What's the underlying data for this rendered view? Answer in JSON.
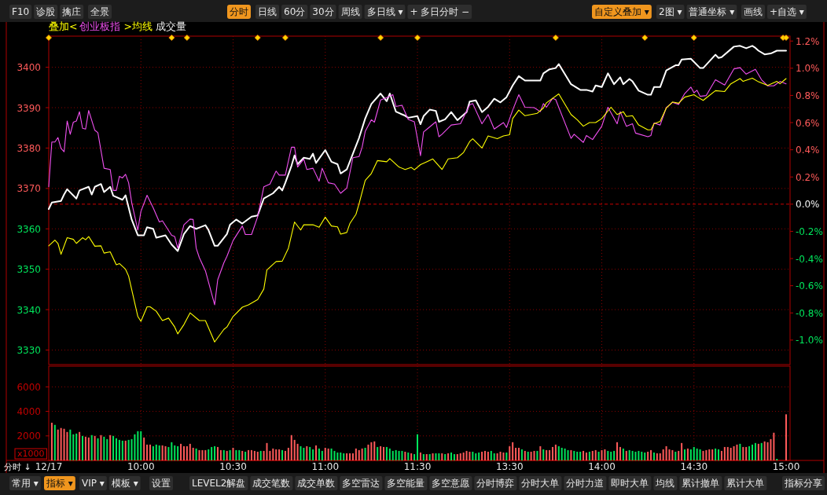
{
  "chart_data": [
    {
      "type": "other",
      "annotations": [
        "F10",
        "诊股",
        "擒庄",
        "全景",
        "分时",
        "日线",
        "60分",
        "30分",
        "周线",
        "多日线 ▾",
        "+ 多日分时 −",
        "自定义叠加 ▾",
        "2图 ▾",
        "普通坐标 ▾",
        "画线",
        "+自选 ▾"
      ]
    },
    {
      "type": "line",
      "categories": [
        null,
        null,
        null,
        null,
        null,
        null,
        null,
        null,
        null,
        null,
        null,
        null,
        null,
        null,
        null,
        null,
        null,
        null,
        null,
        null,
        null,
        null,
        null,
        null,
        null,
        null,
        null,
        null,
        null,
        null,
        null,
        null,
        null,
        null,
        null,
        null,
        null,
        null,
        null,
        null,
        null,
        null,
        null,
        null,
        null,
        null,
        null,
        null,
        null,
        null,
        null,
        null,
        null,
        null,
        null,
        null,
        null,
        null,
        null,
        null,
        null,
        null,
        null,
        null,
        null,
        null,
        null,
        null,
        null,
        null,
        null,
        null,
        null,
        null,
        null,
        null,
        null,
        null,
        null,
        null,
        null,
        null,
        null,
        null,
        null,
        null,
        null,
        null,
        null,
        null,
        null,
        null,
        null,
        null,
        null,
        null,
        null,
        null,
        null,
        null,
        null,
        null,
        null,
        null,
        null,
        null,
        null,
        null,
        null,
        null,
        null,
        null,
        null,
        null,
        null,
        null,
        null,
        null,
        null,
        null,
        null,
        null,
        null,
        null,
        null,
        null,
        null,
        null,
        null,
        null,
        null,
        null,
        null,
        null,
        null,
        null,
        null,
        null,
        null,
        null,
        null,
        null,
        null,
        null,
        null,
        null,
        null,
        null,
        null,
        null,
        null,
        null,
        null,
        null,
        null,
        null,
        null,
        null,
        null,
        null,
        null,
        null,
        null,
        null,
        null,
        null,
        null,
        null,
        null,
        null,
        null,
        null,
        null,
        null,
        null,
        null,
        null,
        null,
        null,
        null,
        null,
        null,
        null,
        null,
        null,
        null,
        null,
        null,
        null,
        null,
        null,
        null,
        null,
        null,
        null,
        null,
        null,
        null,
        null,
        null,
        null,
        null,
        null,
        null,
        null,
        null,
        null,
        null,
        null,
        null,
        null,
        null,
        null,
        null,
        null,
        null,
        null,
        null,
        null,
        null,
        null,
        null,
        null,
        null,
        null,
        null,
        null,
        null,
        null,
        null,
        null,
        null,
        null,
        null,
        null,
        null,
        null,
        null,
        null,
        null,
        null
      ],
      "ylim": [
        3326.4,
        3407.7
      ],
      "yticks": [
        3330,
        3340,
        3350,
        3360,
        3370,
        3380,
        3390,
        3400
      ],
      "y2lim": [
        -1.18,
        1.236
      ],
      "y2ticks": [
        {
          "value": -1.0,
          "label": "-1.0%"
        },
        {
          "value": -0.8,
          "label": "-0.8%"
        },
        {
          "value": -0.6,
          "label": "-0.6%"
        },
        {
          "value": -0.4,
          "label": "-0.4%"
        },
        {
          "value": -0.2,
          "label": "-0.2%"
        },
        {
          "value": 0,
          "label": "0.0%"
        },
        {
          "value": 0.2,
          "label": "0.2%"
        },
        {
          "value": 0.4,
          "label": "0.4%"
        },
        {
          "value": 0.6,
          "label": "0.6%"
        },
        {
          "value": 0.8,
          "label": "0.8%"
        },
        {
          "value": 1.0,
          "label": "1.0%"
        },
        {
          "value": 1.2,
          "label": "1.2%"
        }
      ],
      "grid": true,
      "tick_labels": "y",
      "legend_title": "叠加<",
      "ref_lines": [
        {
          "axis": "y2",
          "value": 0,
          "color": "#cc0000",
          "line_style": "dashed"
        }
      ],
      "series": [
        {
          "color": "#ffffff",
          "values": [
            3364.9,
            3366.5,
            null,
            null,
            3366.9,
            3368.5,
            3369.8,
            null,
            null,
            3367.5,
            3369.5,
            null,
            null,
            3370.4,
            3368.5,
            3370.4,
            null,
            3371.1,
            3369.1,
            null,
            3370.4,
            3368.2,
            null,
            null,
            3367.2,
            3368.3,
            null,
            3362.3,
            null,
            3358.4,
            null,
            3358.4,
            3360.4,
            null,
            3360.0,
            3357.8,
            null,
            null,
            3358.4,
            null,
            3356.1,
            null,
            3354.5,
            null,
            3358.7,
            null,
            3360.7,
            null,
            3360.0,
            null,
            null,
            3360.9,
            3359.7,
            null,
            3355.8,
            3355.8,
            null,
            null,
            3358.7,
            3361.0,
            null,
            3362.3,
            null,
            3361.3,
            null,
            null,
            3363.0,
            null,
            3363.3,
            null,
            3367.5,
            null,
            null,
            3368.8,
            null,
            3370.4,
            3369.5,
            3371.4,
            null,
            3375.6,
            3378.2,
            3376.0,
            null,
            3377.6,
            null,
            3377.3,
            3378.6,
            3376.3,
            null,
            null,
            3379.5,
            null,
            3376.6,
            null,
            3376.0,
            3373.7,
            null,
            3374.7,
            null,
            3378.6,
            null,
            3382.5,
            null,
            3387.3,
            null,
            3390.9,
            null,
            null,
            3393.5,
            null,
            3391.6,
            3393.5,
            null,
            3389.0,
            null,
            null,
            3388.0,
            3387.5,
            null,
            null,
            3387.9,
            3385.9,
            3387.9,
            null,
            3389.5,
            null,
            3389.2,
            3386.5,
            null,
            3387.1,
            null,
            3388.9,
            null,
            3386.9,
            null,
            null,
            3388.9,
            3391.5,
            null,
            3391.8,
            null,
            3388.9,
            null,
            3390.2,
            null,
            3392.2,
            null,
            3391.3,
            null,
            3392.6,
            null,
            3395.5,
            null,
            3397.8,
            null,
            3396.7,
            null,
            null,
            null,
            null,
            3396.7,
            3398.5,
            null,
            3399.5,
            null,
            3399.8,
            3400.8,
            null,
            null,
            null,
            3395.8,
            null,
            null,
            3394.4,
            null,
            3394.4,
            null,
            3394.0,
            3395.5,
            null,
            3395.1,
            null,
            3398.5,
            null,
            3395.8,
            null,
            3397.5,
            3395.8,
            null,
            3397.1,
            3396.5,
            null,
            3394.2,
            null,
            null,
            3393.2,
            3393.2,
            3395.1,
            null,
            3395.1,
            null,
            3399.2,
            null,
            null,
            3400.5,
            3400.5,
            3401.9,
            null,
            null,
            3402.1,
            null,
            null,
            3399.8,
            3399.8,
            null,
            null,
            null,
            3403.1,
            3402.3,
            3402.5,
            null,
            null,
            null,
            3405.1,
            null,
            3405.3,
            null,
            3404.7,
            null,
            3405.3,
            3404.8,
            3404.1,
            null,
            3403.2,
            null,
            3403.4,
            null,
            3404.1,
            null,
            null,
            3404.1
          ]
        },
        {
          "name": "创业板指",
          "color": "#f050f0",
          "values": [
            3370.4,
            3381.5,
            3381.5,
            3382.6,
            3379.9,
            3379.1,
            3386.7,
            3383.4,
            3386.4,
            3386.7,
            3389.0,
            3384.9,
            3384.7,
            3389.3,
            null,
            3384.4,
            3383.8,
            null,
            3375.0,
            null,
            3374.7,
            3369.5,
            3369.5,
            3373.0,
            3372.6,
            3373.5,
            3371.4,
            3366.5,
            null,
            3359.7,
            3364.3,
            null,
            3368.3,
            null,
            3365.2,
            null,
            3361.7,
            3362.0,
            null,
            null,
            3358.4,
            3358.1,
            3355.2,
            null,
            3361.0,
            null,
            3362.4,
            3362.3,
            3355.2,
            3352.9,
            null,
            3349.6,
            null,
            null,
            3341.2,
            3347.4,
            null,
            3351.6,
            3353.2,
            null,
            3357.1,
            null,
            null,
            3360.7,
            3358.6,
            null,
            3358.6,
            null,
            3363.0,
            null,
            3370.4,
            null,
            3371.1,
            null,
            3374.3,
            3373.3,
            null,
            3373.3,
            null,
            3380.2,
            3380.2,
            3375.3,
            null,
            3377.3,
            3374.7,
            null,
            3375.0,
            null,
            3371.8,
            3375.0,
            null,
            3371.4,
            null,
            3371.1,
            null,
            3368.8,
            null,
            3370.1,
            null,
            3377.6,
            null,
            3377.9,
            3380.2,
            3384.1,
            null,
            3387.0,
            3386.4,
            null,
            3391.9,
            null,
            3392.5,
            null,
            3393.2,
            3390.3,
            null,
            3390.6,
            null,
            3387.1,
            null,
            3386.5,
            null,
            3378.1,
            3384.0,
            3384.6,
            null,
            null,
            3386.5,
            3382.8,
            3383.4,
            null,
            null,
            3385.7,
            null,
            null,
            3386.0,
            null,
            null,
            3390.7,
            3391.0,
            null,
            null,
            3386.0,
            null,
            3388.3,
            null,
            3384.7,
            null,
            null,
            3386.3,
            3385.1,
            null,
            3389.4,
            null,
            3393.2,
            null,
            3390.1,
            null,
            null,
            3390.0,
            null,
            3389.0,
            3391.0,
            3390.1,
            null,
            3392.3,
            3392.0,
            null,
            null,
            null,
            null,
            3382.4,
            3383.4,
            null,
            null,
            3381.4,
            3383.1,
            null,
            3382.1,
            null,
            null,
            3385.4,
            null,
            3390.1,
            null,
            null,
            3386.0,
            3389.0,
            null,
            3385.4,
            null,
            3386.0,
            3383.7,
            null,
            null,
            null,
            3382.8,
            3383.1,
            3386.2,
            null,
            3385.7,
            null,
            3390.0,
            null,
            3391.3,
            null,
            3390.8,
            null,
            3393.5,
            null,
            3395.1,
            3393.7,
            3394.3,
            3392.8,
            null,
            3393.0,
            null,
            null,
            3396.9,
            null,
            null,
            3395.6,
            null,
            null,
            3399.6,
            null,
            3399.9,
            null,
            3398.3,
            null,
            null,
            3399.5,
            null,
            3396.9,
            null,
            3395.4,
            null,
            3395.4,
            null,
            3396.5,
            null,
            3395.9
          ]
        },
        {
          "name": ">均线",
          "color": "#ffff00",
          "values": [
            3355.8,
            null,
            3357.2,
            3356.4,
            3353.7,
            null,
            3357.8,
            null,
            3357.4,
            3356.4,
            null,
            3357.8,
            3357.3,
            3358.1,
            null,
            3355.7,
            null,
            3355.8,
            3354.0,
            null,
            3354.3,
            null,
            3351.1,
            3351.4,
            null,
            3350.0,
            3348.3,
            null,
            null,
            3338.3,
            3337.1,
            null,
            3340.7,
            3340.7,
            null,
            3339.6,
            null,
            3337.3,
            null,
            3337.9,
            null,
            3335.7,
            3334.0,
            null,
            3336.3,
            null,
            3339.2,
            null,
            null,
            3337.3,
            null,
            3337.3,
            null,
            null,
            3332.0,
            null,
            null,
            3335.1,
            3335.7,
            null,
            3338.3,
            null,
            null,
            3340.6,
            null,
            3341.2,
            null,
            null,
            3342.5,
            null,
            3345.1,
            3349.8,
            null,
            null,
            3351.9,
            null,
            3352.0,
            null,
            3355.2,
            null,
            3361.7,
            null,
            3359.7,
            3361.0,
            null,
            null,
            3361.0,
            null,
            3360.4,
            null,
            3362.9,
            null,
            3360.7,
            null,
            3360.5,
            3358.7,
            null,
            3359.1,
            3361.3,
            null,
            3363.6,
            3366.2,
            null,
            3372.0,
            null,
            3373.7,
            null,
            3376.9,
            null,
            null,
            3376.6,
            3377.4,
            null,
            null,
            3375.3,
            null,
            3374.7,
            null,
            3375.2,
            3374.6,
            null,
            3375.9,
            null,
            3376.6,
            null,
            3377.3,
            null,
            null,
            3374.7,
            null,
            3377.3,
            null,
            null,
            3377.6,
            null,
            3378.9,
            null,
            3381.6,
            3382.3,
            null,
            null,
            3380.0,
            null,
            3383.0,
            null,
            null,
            3382.3,
            null,
            3383.0,
            null,
            3383.3,
            3387.3,
            null,
            3389.4,
            null,
            3388.0,
            null,
            null,
            null,
            3388.6,
            null,
            3389.9,
            3391.2,
            null,
            null,
            null,
            3393.4,
            null,
            null,
            null,
            3388.3,
            null,
            3387.0,
            null,
            3385.4,
            null,
            3386.3,
            null,
            3386.3,
            null,
            3387.3,
            null,
            null,
            3390.1,
            null,
            3388.3,
            null,
            3389.0,
            3387.8,
            null,
            3388.0,
            null,
            3385.7,
            null,
            null,
            3384.5,
            3384.5,
            3386.0,
            null,
            3386.6,
            null,
            3389.9,
            null,
            3391.4,
            null,
            3391.1,
            null,
            3392.6,
            null,
            null,
            3393.2,
            3392.7,
            null,
            3391.8,
            null,
            null,
            null,
            3394.2,
            null,
            null,
            3394.0,
            null,
            3395.9,
            null,
            null,
            3397.2,
            3396.5,
            null,
            null,
            3397.3,
            null,
            3396.4,
            null,
            null,
            3395.5,
            null,
            null,
            3396.5,
            3395.9,
            null,
            3397.2
          ]
        }
      ]
    },
    {
      "type": "bar",
      "categories": [
        "12/17",
        null,
        null,
        null,
        null,
        null,
        null,
        null,
        null,
        null,
        null,
        null,
        null,
        null,
        null,
        null,
        null,
        null,
        null,
        null,
        null,
        null,
        null,
        null,
        null,
        null,
        null,
        null,
        null,
        null,
        "10:00",
        null,
        null,
        null,
        null,
        null,
        null,
        null,
        null,
        null,
        null,
        null,
        null,
        null,
        null,
        null,
        null,
        null,
        null,
        null,
        null,
        null,
        null,
        null,
        null,
        null,
        null,
        null,
        null,
        null,
        "10:30",
        null,
        null,
        null,
        null,
        null,
        null,
        null,
        null,
        null,
        null,
        null,
        null,
        null,
        null,
        null,
        null,
        null,
        null,
        null,
        null,
        null,
        null,
        null,
        null,
        null,
        null,
        null,
        null,
        null,
        "11:00",
        null,
        null,
        null,
        null,
        null,
        null,
        null,
        null,
        null,
        null,
        null,
        null,
        null,
        null,
        null,
        null,
        null,
        null,
        null,
        null,
        null,
        null,
        null,
        null,
        null,
        null,
        null,
        null,
        null,
        "11:30",
        null,
        null,
        null,
        null,
        null,
        null,
        null,
        null,
        null,
        null,
        null,
        null,
        null,
        null,
        null,
        null,
        null,
        null,
        null,
        null,
        null,
        null,
        null,
        null,
        null,
        null,
        null,
        null,
        null,
        "13:30",
        null,
        null,
        null,
        null,
        null,
        null,
        null,
        null,
        null,
        null,
        null,
        null,
        null,
        null,
        null,
        null,
        null,
        null,
        null,
        null,
        null,
        null,
        null,
        null,
        null,
        null,
        null,
        null,
        null,
        "14:00",
        null,
        null,
        null,
        null,
        null,
        null,
        null,
        null,
        null,
        null,
        null,
        null,
        null,
        null,
        null,
        null,
        null,
        null,
        null,
        null,
        null,
        null,
        null,
        null,
        null,
        null,
        null,
        null,
        null,
        "14:30",
        null,
        null,
        null,
        null,
        null,
        null,
        null,
        null,
        null,
        null,
        null,
        null,
        null,
        null,
        null,
        null,
        null,
        null,
        null,
        null,
        null,
        null,
        null,
        null,
        null,
        null,
        null,
        null,
        null,
        "15:00"
      ],
      "ylim": [
        0,
        7690
      ],
      "yticks": [
        2000,
        4000,
        6000
      ],
      "grid": true,
      "annotations": [
        "成交量",
        "x1000",
        "分时 ↓"
      ],
      "series": [
        {
          "values": [
            null,
            3075,
            2900,
            2515,
            2645,
            2580,
            2320,
            2515,
            2130,
            2190,
            2320,
            2000,
            1935,
            1870,
            2065,
            2000,
            1805,
            2065,
            1935,
            1740,
            2065,
            2000,
            1805,
            1675,
            1610,
            1610,
            1675,
            1740,
            2130,
            2385,
            2385,
            1870,
            1290,
            1290,
            1160,
            1290,
            1225,
            1225,
            1160,
            1095,
            1485,
            1225,
            1160,
            1355,
            1160,
            1160,
            1355,
            1030,
            970,
            840,
            840,
            840,
            905,
            1095,
            1160,
            1095,
            840,
            840,
            775,
            840,
            1030,
            840,
            840,
            775,
            710,
            840,
            840,
            775,
            710,
            775,
            775,
            1420,
            775,
            970,
            905,
            905,
            840,
            775,
            1030,
            2065,
            1675,
            1355,
            1160,
            1030,
            1160,
            1095,
            905,
            1225,
            970,
            775,
            1030,
            970,
            970,
            775,
            645,
            645,
            580,
            580,
            580,
            580,
            970,
            840,
            970,
            1030,
            1290,
            1485,
            1550,
            1095,
            1160,
            1095,
            1095,
            970,
            775,
            840,
            775,
            775,
            710,
            645,
            580,
            515,
            2130,
            645,
            515,
            515,
            515,
            580,
            580,
            580,
            580,
            515,
            580,
            645,
            515,
            515,
            580,
            645,
            775,
            710,
            710,
            580,
            645,
            710,
            775,
            710,
            775,
            580,
            580,
            710,
            645,
            645,
            1160,
            1485,
            1030,
            1030,
            905,
            775,
            710,
            710,
            775,
            775,
            1160,
            905,
            840,
            840,
            1095,
            1290,
            1160,
            1030,
            970,
            840,
            840,
            775,
            710,
            710,
            775,
            645,
            710,
            775,
            840,
            710,
            840,
            905,
            775,
            710,
            775,
            1485,
            1095,
            970,
            775,
            840,
            775,
            710,
            775,
            710,
            645,
            710,
            840,
            645,
            580,
            580,
            905,
            1160,
            905,
            840,
            710,
            775,
            1420,
            905,
            970,
            905,
            1095,
            970,
            905,
            775,
            840,
            905,
            905,
            970,
            905,
            775,
            1095,
            1095,
            1030,
            1160,
            1290,
            1355,
            1095,
            1095,
            1160,
            1290,
            1420,
            1355,
            1420,
            1550,
            1485,
            1740,
            2260,
            130,
            null,
            null,
            3760
          ],
          "colors": [
            null,
            "#ff5a5a",
            "#00e65c",
            "#ff5a5a",
            "#ff5a5a",
            "#ff5a5a",
            "#ff5a5a",
            "#00e65c",
            "#00e65c",
            "#00e65c",
            "#ff5a5a",
            "#00e65c",
            "#ff5a5a",
            "#ff5a5a",
            "#00e65c",
            "#ff5a5a",
            "#00e65c",
            "#ff5a5a",
            "#00e65c",
            "#00e65c",
            "#ff5a5a",
            "#00e65c",
            "#00e65c",
            "#00e65c",
            "#00e65c",
            "#ff5a5a",
            "#00e65c",
            "#00e65c",
            "#00e65c",
            "#00e65c",
            "#00e65c",
            "#ff5a5a",
            "#ff5a5a",
            "#ff5a5a",
            "#00e65c",
            "#00e65c",
            "#00e65c",
            "#ff5a5a",
            "#ff5a5a",
            "#00e65c",
            "#00e65c",
            "#00e65c",
            "#00e65c",
            "#ff5a5a",
            "#ff5a5a",
            "#ff5a5a",
            "#ff5a5a",
            "#ff5a5a",
            "#00e65c",
            "#ff5a5a",
            "#ff5a5a",
            "#ff5a5a",
            "#00e65c",
            "#00e65c",
            "#00e65c",
            "#ff5a5a",
            "#ff5a5a",
            "#00e65c",
            "#ff5a5a",
            "#00e65c",
            "#ff5a5a",
            "#00e65c",
            "#00e65c",
            "#ff5a5a",
            "#00e65c",
            "#ff5a5a",
            "#ff5a5a",
            "#ff5a5a",
            "#ff5a5a",
            "#00e65c",
            "#ff5a5a",
            "#ff5a5a",
            "#ff5a5a",
            "#ff5a5a",
            "#ff5a5a",
            "#ff5a5a",
            "#00e65c",
            "#ff5a5a",
            "#ff5a5a",
            "#ff5a5a",
            "#ff5a5a",
            "#ff5a5a",
            "#00e65c",
            "#00e65c",
            "#ff5a5a",
            "#00e65c",
            "#00e65c",
            "#ff5a5a",
            "#00e65c",
            "#00e65c",
            "#ff5a5a",
            "#ff5a5a",
            "#00e65c",
            "#00e65c",
            "#00e65c",
            "#00e65c",
            "#00e65c",
            "#ff5a5a",
            "#ff5a5a",
            "#ff5a5a",
            "#ff5a5a",
            "#ff5a5a",
            "#ff5a5a",
            "#00e65c",
            "#ff5a5a",
            "#ff5a5a",
            "#ff5a5a",
            "#00e65c",
            "#ff5a5a",
            "#ff5a5a",
            "#00e65c",
            "#00e65c",
            "#00e65c",
            "#00e65c",
            "#00e65c",
            "#00e65c",
            "#ff5a5a",
            "#00e65c",
            "#ff5a5a",
            "#00e65c",
            "#00e65c",
            "#ff5a5a",
            "#00e65c",
            "#ff5a5a",
            "#00e65c",
            "#ff5a5a",
            "#00e65c",
            "#00e65c",
            "#ff5a5a",
            "#00e65c",
            "#ff5a5a",
            "#00e65c",
            "#00e65c",
            "#ff5a5a",
            "#ff5a5a",
            "#ff5a5a",
            "#ff5a5a",
            "#ff5a5a",
            "#00e65c",
            "#00e65c",
            "#00e65c",
            "#ff5a5a",
            "#ff5a5a",
            "#ff5a5a",
            "#00e65c",
            "#00e65c",
            "#ff5a5a",
            "#ff5a5a",
            "#ff5a5a",
            "#00e65c",
            "#ff5a5a",
            "#ff5a5a",
            "#ff5a5a",
            "#ff5a5a",
            "#00e65c",
            "#ff5a5a",
            "#00e65c",
            "#ff5a5a",
            "#ff5a5a",
            "#00e65c",
            "#ff5a5a",
            "#00e65c",
            "#ff5a5a",
            "#ff5a5a",
            "#ff5a5a",
            "#ff5a5a",
            "#00e65c",
            "#00e65c",
            "#00e65c",
            "#00e65c",
            "#ff5a5a",
            "#00e65c",
            "#00e65c",
            "#00e65c",
            "#ff5a5a",
            "#ff5a5a",
            "#00e65c",
            "#ff5a5a",
            "#ff5a5a",
            "#00e65c",
            "#ff5a5a",
            "#ff5a5a",
            "#00e65c",
            "#00e65c",
            "#00e65c",
            "#ff5a5a",
            "#ff5a5a",
            "#00e65c",
            "#ff5a5a",
            "#00e65c",
            "#00e65c",
            "#00e65c",
            "#00e65c",
            "#00e65c",
            "#00e65c",
            "#ff5a5a",
            "#ff5a5a",
            "#00e65c",
            "#ff5a5a",
            "#ff5a5a",
            "#ff5a5a",
            "#ff5a5a",
            "#ff5a5a",
            "#ff5a5a",
            "#00e65c",
            "#ff5a5a",
            "#ff5a5a",
            "#00e65c",
            "#ff5a5a",
            "#00e65c",
            "#00e65c",
            "#00e65c",
            "#00e65c",
            "#ff5a5a",
            "#ff5a5a",
            "#ff5a5a",
            "#ff5a5a",
            "#00e65c",
            "#00e65c",
            "#ff5a5a",
            "#ff5a5a",
            "#ff5a5a",
            "#ff5a5a",
            "#ff5a5a",
            "#ff5a5a",
            "#00e65c",
            "#ff5a5a",
            "#ff5a5a",
            "#00e65c",
            "#00e65c",
            "#00e65c",
            "#ff5a5a",
            "#00e65c",
            "#ff5a5a",
            "#ff5a5a",
            "#ff5a5a",
            "#ff5a5a",
            "#00e65c",
            null,
            null,
            "#ff5a5a"
          ]
        }
      ]
    },
    {
      "type": "other",
      "annotations": [
        "常用 ▾",
        "指标 ▾",
        "VIP ▾",
        "模板 ▾",
        "设置",
        "LEVEL2解盘",
        "成交笔数",
        "成交单数",
        "多空雷达",
        "多空能量",
        "多空意愿",
        "分时博弈",
        "分时大单",
        "分时力道",
        "即时大单",
        "均线",
        "累计撤单",
        "累计大单",
        "指标分享"
      ]
    }
  ]
}
